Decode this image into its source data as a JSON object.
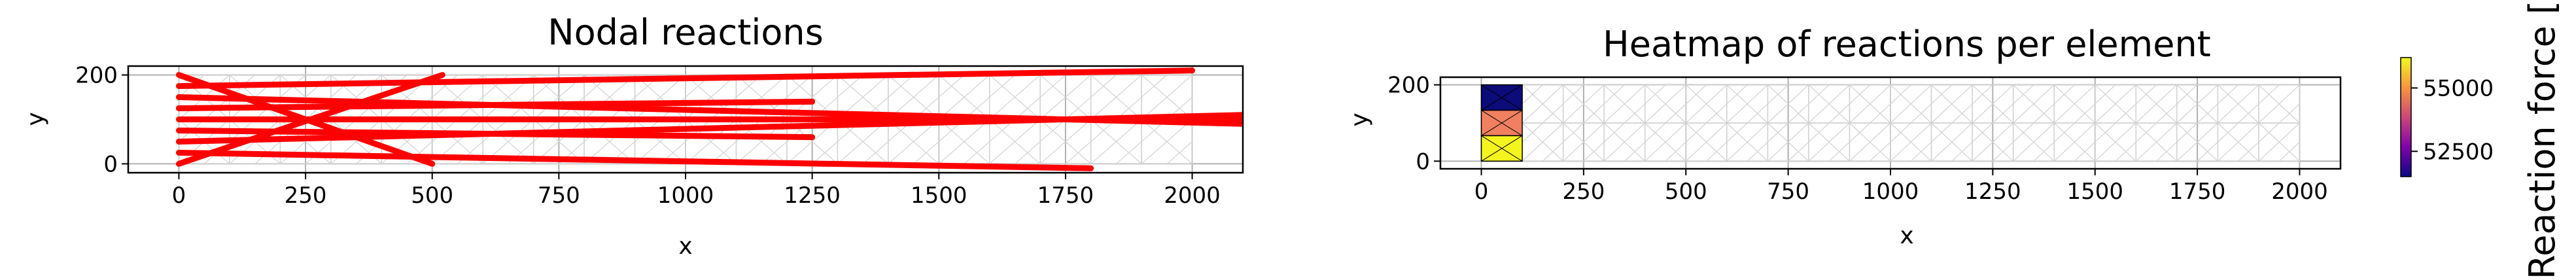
{
  "chart_data": [
    {
      "type": "line",
      "title": "Nodal reactions",
      "xlabel": "x",
      "ylabel": "y",
      "xlim": [
        -100,
        2100
      ],
      "ylim": [
        -20,
        220
      ],
      "xticks": [
        0,
        250,
        500,
        750,
        1000,
        1250,
        1500,
        1750,
        2000
      ],
      "yticks": [
        0,
        200
      ],
      "grid": true,
      "mesh": {
        "x_divisions": 20,
        "y_divisions": 2,
        "x_min": 0,
        "x_max": 2000,
        "y_min": 0,
        "y_max": 200
      },
      "mesh_color": "#d3d3d3",
      "reaction_color": "#ff0000",
      "reaction_arrows": [
        {
          "x": [
            0,
            500
          ],
          "y": [
            200,
            0
          ]
        },
        {
          "x": [
            0,
            520
          ],
          "y": [
            0,
            200
          ]
        },
        {
          "x": [
            0,
            2100
          ],
          "y": [
            100,
            100
          ]
        },
        {
          "x": [
            0,
            2100
          ],
          "y": [
            150,
            90
          ]
        },
        {
          "x": [
            0,
            2100
          ],
          "y": [
            50,
            110
          ]
        },
        {
          "x": [
            0,
            2000
          ],
          "y": [
            175,
            210
          ]
        },
        {
          "x": [
            0,
            1800
          ],
          "y": [
            25,
            -10
          ]
        },
        {
          "x": [
            0,
            1250
          ],
          "y": [
            125,
            140
          ]
        },
        {
          "x": [
            0,
            1250
          ],
          "y": [
            75,
            60
          ]
        }
      ]
    },
    {
      "type": "heatmap",
      "title": "Heatmap of reactions per element",
      "xlabel": "x",
      "ylabel": "y",
      "xlim": [
        -100,
        2100
      ],
      "ylim": [
        -20,
        220
      ],
      "xticks": [
        0,
        250,
        500,
        750,
        1000,
        1250,
        1500,
        1750,
        2000
      ],
      "yticks": [
        0,
        200
      ],
      "grid": true,
      "cells": [
        {
          "x0": 0,
          "x1": 100,
          "y0": 133.3,
          "y1": 200,
          "value": 51800,
          "color": "#0b0b7a"
        },
        {
          "x0": 0,
          "x1": 100,
          "y0": 66.7,
          "y1": 133.3,
          "value": 54300,
          "color": "#f08060"
        },
        {
          "x0": 0,
          "x1": 100,
          "y0": 0,
          "y1": 66.7,
          "value": 56000,
          "color": "#f5f51e"
        }
      ],
      "colorbar": {
        "label": "Reaction force [",
        "range": [
          51500,
          56200
        ],
        "ticks": [
          52500,
          55000
        ],
        "tick_labels": [
          "52500",
          "55000"
        ],
        "colormap": "plasma"
      }
    }
  ]
}
